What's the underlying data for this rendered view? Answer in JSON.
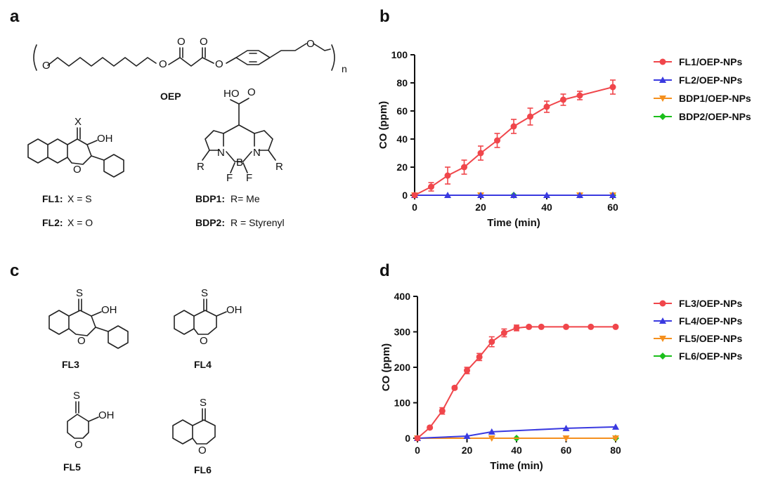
{
  "panels": {
    "a": "a",
    "b": "b",
    "c": "c",
    "d": "d"
  },
  "structures": {
    "oep_label": "OEP",
    "oep_n": "n",
    "fl1_name": "FL1:",
    "fl1_desc": "X = S",
    "fl2_name": "FL2:",
    "fl2_desc": "X = O",
    "bdp1_name": "BDP1:",
    "bdp1_desc": "R= Me",
    "bdp2_name": "BDP2:",
    "bdp2_desc": "R = Styrenyl",
    "fl3": "FL3",
    "fl4": "FL4",
    "fl5": "FL5",
    "fl6": "FL6",
    "atoms": {
      "O": "O",
      "S": "S",
      "X": "X",
      "OH": "OH",
      "HO": "HO",
      "N": "N",
      "B": "B",
      "F": "F",
      "R": "R"
    }
  },
  "chart_data": [
    {
      "type": "line",
      "xlabel": "Time (min)",
      "ylabel": "CO (ppm)",
      "xlim": [
        0,
        60
      ],
      "ylim": [
        0,
        100
      ],
      "xticks": [
        0,
        20,
        40,
        60
      ],
      "yticks": [
        0,
        20,
        40,
        60,
        80,
        100
      ],
      "legend_position": "right",
      "series": [
        {
          "name": "FL1/OEP-NPs",
          "color": "#f0464b",
          "marker": "circle",
          "x": [
            0,
            5,
            10,
            15,
            20,
            25,
            30,
            35,
            40,
            45,
            50,
            60
          ],
          "y": [
            0,
            6,
            14,
            20,
            30,
            39,
            49,
            56,
            63,
            68,
            71,
            77
          ],
          "err": [
            1,
            3,
            6,
            5,
            5,
            5,
            5,
            6,
            4,
            4,
            3,
            5
          ]
        },
        {
          "name": "FL2/OEP-NPs",
          "color": "#3a3ae0",
          "marker": "triangle-up",
          "x": [
            0,
            10,
            20,
            30,
            40,
            50,
            60
          ],
          "y": [
            0,
            0,
            0,
            0,
            0,
            0,
            0
          ]
        },
        {
          "name": "BDP1/OEP-NPs",
          "color": "#f5901e",
          "marker": "triangle-down",
          "x": [
            0,
            20,
            50,
            60
          ],
          "y": [
            0,
            0,
            0,
            0
          ]
        },
        {
          "name": "BDP2/OEP-NPs",
          "color": "#1bbf1b",
          "marker": "diamond",
          "x": [
            0,
            30,
            60
          ],
          "y": [
            0,
            0,
            0
          ]
        }
      ]
    },
    {
      "type": "line",
      "xlabel": "Time (min)",
      "ylabel": "CO (ppm)",
      "xlim": [
        0,
        80
      ],
      "ylim": [
        0,
        400
      ],
      "xticks": [
        0,
        20,
        40,
        60,
        80
      ],
      "yticks": [
        0,
        100,
        200,
        300,
        400
      ],
      "legend_position": "right",
      "series": [
        {
          "name": "FL3/OEP-NPs",
          "color": "#f0464b",
          "marker": "circle",
          "x": [
            0,
            5,
            10,
            15,
            20,
            25,
            30,
            35,
            40,
            45,
            50,
            60,
            70,
            80
          ],
          "y": [
            0,
            30,
            77,
            142,
            191,
            229,
            272,
            297,
            311,
            314,
            314,
            314,
            314,
            314
          ],
          "err": [
            2,
            3,
            9,
            4,
            9,
            10,
            14,
            11,
            8,
            3,
            2,
            2,
            2,
            2
          ]
        },
        {
          "name": "FL4/OEP-NPs",
          "color": "#3a3ae0",
          "marker": "triangle-up",
          "x": [
            0,
            20,
            30,
            60,
            80
          ],
          "y": [
            0,
            6,
            18,
            28,
            32
          ]
        },
        {
          "name": "FL5/OEP-NPs",
          "color": "#f5901e",
          "marker": "triangle-down",
          "x": [
            0,
            30,
            60,
            80
          ],
          "y": [
            0,
            0,
            0,
            0
          ]
        },
        {
          "name": "FL6/OEP-NPs",
          "color": "#1bbf1b",
          "marker": "diamond",
          "x": [
            0,
            40,
            80
          ],
          "y": [
            0,
            0,
            0
          ]
        }
      ]
    }
  ]
}
